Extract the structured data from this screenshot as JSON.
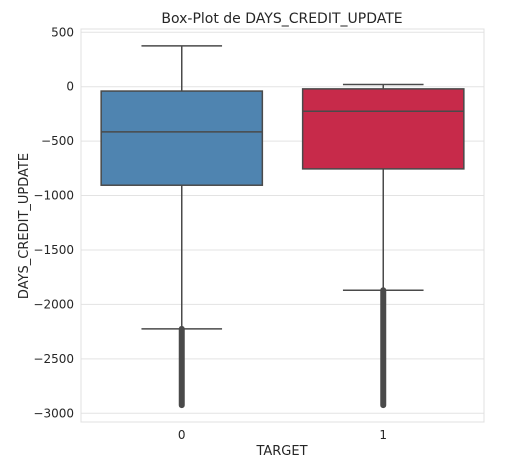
{
  "chart_data": {
    "type": "box",
    "title": "Box-Plot de DAYS_CREDIT_UPDATE",
    "xlabel": "TARGET",
    "ylabel": "DAYS_CREDIT_UPDATE",
    "ylim": [
      -3080,
      530
    ],
    "yticks": [
      500,
      0,
      -500,
      -1000,
      -1500,
      -2000,
      -2500,
      -3000
    ],
    "grid": true,
    "categories": [
      "0",
      "1"
    ],
    "boxes": [
      {
        "category": "0",
        "color": "#4f84b0",
        "q1": -905,
        "median": -415,
        "q3": -40,
        "whisker_low": -2225,
        "whisker_high": 375,
        "outliers_min": -2925,
        "outliers_max": -2225
      },
      {
        "category": "1",
        "color": "#c72a4a",
        "q1": -755,
        "median": -225,
        "q3": -20,
        "whisker_low": -1870,
        "whisker_high": 20,
        "outliers_min": -2925,
        "outliers_max": -1870
      }
    ]
  }
}
